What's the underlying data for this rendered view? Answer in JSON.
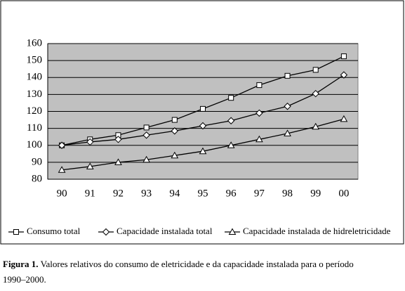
{
  "chart_data": {
    "type": "line",
    "categories": [
      "90",
      "91",
      "92",
      "93",
      "94",
      "95",
      "96",
      "97",
      "98",
      "99",
      "00"
    ],
    "series": [
      {
        "name": "Consumo total",
        "color": "#000000",
        "marker": "square",
        "values": [
          100,
          103.5,
          106,
          110.5,
          115,
          121.5,
          128,
          135.5,
          141,
          144.5,
          152.5
        ]
      },
      {
        "name": "Capacidade instalada total",
        "color": "#000000",
        "marker": "diamond",
        "values": [
          100,
          102,
          103.5,
          106,
          108.5,
          111.5,
          114.5,
          119,
          123,
          130.5,
          141.5
        ]
      },
      {
        "name": "Capacidade instalada de hidreletricidade",
        "color": "#000000",
        "marker": "triangle",
        "values": [
          85.5,
          87.5,
          90,
          91.5,
          94,
          96.5,
          100,
          103.5,
          107,
          111,
          115.5
        ]
      }
    ],
    "ylim": [
      80,
      160
    ],
    "yticks": [
      80,
      90,
      100,
      110,
      120,
      130,
      140,
      150,
      160
    ],
    "grid": true,
    "legend": "bottom"
  },
  "caption": {
    "label": "Figura 1.",
    "text": "Valores relativos do consumo de eletricidade e da capacidade instalada para o período 1990–2000."
  }
}
